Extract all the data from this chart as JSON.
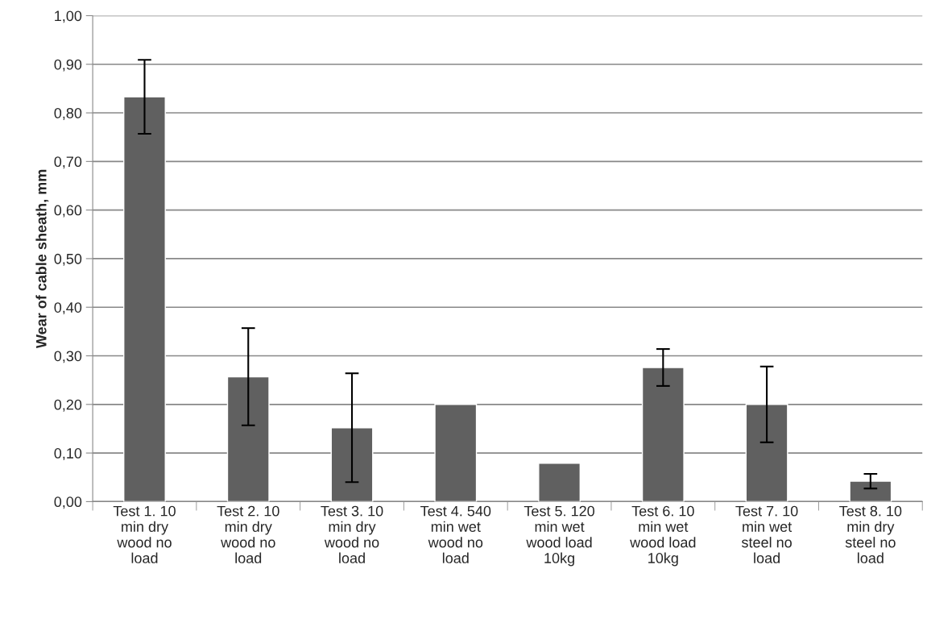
{
  "chart_data": {
    "type": "bar",
    "ylabel": "Wear of cable sheath, mm",
    "categories": [
      "Test 1. 10\nmin dry\nwood no\nload",
      "Test 2. 10\nmin dry\nwood no\nload",
      "Test 3. 10\nmin dry\nwood no\nload",
      "Test 4. 540\nmin wet\nwood no\nload",
      "Test 5. 120\nmin wet\nwood load\n10kg",
      "Test 6. 10\nmin wet\nwood load\n10kg",
      "Test 7. 10\nmin wet\nsteel no\nload",
      "Test 8. 10\nmin dry\nsteel no\nload"
    ],
    "series": [
      {
        "color": "#606060",
        "values": [
          0.833,
          0.257,
          0.152,
          0.2,
          0.079,
          0.276,
          0.2,
          0.042
        ],
        "errors": [
          0.076,
          0.1,
          0.112,
          null,
          null,
          0.038,
          0.078,
          0.015
        ]
      }
    ],
    "ylim": [
      0,
      1.0
    ],
    "yticks": [
      {
        "value": 0,
        "label": "0,00"
      },
      {
        "value": 0.1,
        "label": "0,10"
      },
      {
        "value": 0.2,
        "label": "0,20"
      },
      {
        "value": 0.3,
        "label": "0,30"
      },
      {
        "value": 0.4,
        "label": "0,40"
      },
      {
        "value": 0.5,
        "label": "0,50"
      },
      {
        "value": 0.6,
        "label": "0,60"
      },
      {
        "value": 0.7,
        "label": "0,70"
      },
      {
        "value": 0.8,
        "label": "0,80"
      },
      {
        "value": 0.9,
        "label": "0,90"
      },
      {
        "value": 1.0,
        "label": "1,00"
      }
    ],
    "grid": "y"
  }
}
